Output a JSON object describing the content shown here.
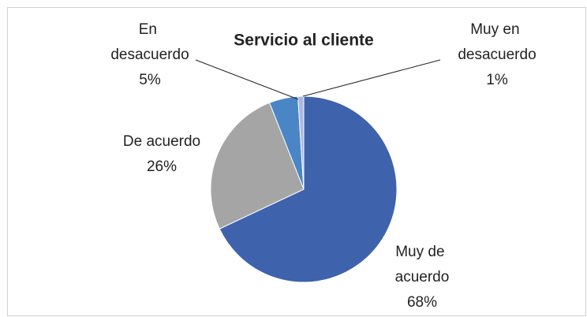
{
  "chart_data": {
    "type": "pie",
    "title": "Servicio al cliente",
    "categories": [
      "Muy de acuerdo",
      "De acuerdo",
      "En desacuerdo",
      "Muy en desacuerdo"
    ],
    "values": [
      68,
      26,
      5,
      1
    ],
    "value_labels": [
      "68%",
      "26%",
      "5%",
      "1%"
    ],
    "colors": [
      "#3f62ad",
      "#a5a5a5",
      "#4a86c5",
      "#a9b8e3"
    ]
  }
}
